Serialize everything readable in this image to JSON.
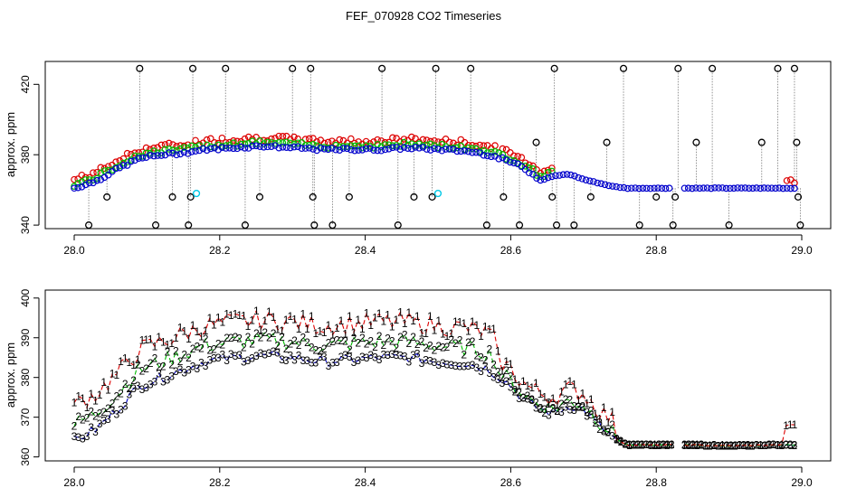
{
  "title": "FEF_070928  CO2 Timeseries",
  "chart_data": [
    {
      "type": "scatter",
      "panel": "top",
      "ylabel": "approx. ppm",
      "xlabel": "",
      "xlim": [
        28.0,
        29.0
      ],
      "ylim": [
        338,
        433
      ],
      "x_ticks": [
        "28.0",
        "28.2",
        "28.4",
        "28.6",
        "28.8",
        "29.0"
      ],
      "y_ticks": [
        "340",
        "380",
        "420"
      ],
      "grid": false,
      "series": [
        {
          "name": "black",
          "color": "#000000",
          "marker": "open-circle",
          "points": [
            [
              28.02,
              340
            ],
            [
              28.045,
              356
            ],
            [
              28.09,
              429
            ],
            [
              28.112,
              340
            ],
            [
              28.135,
              356
            ],
            [
              28.157,
              340
            ],
            [
              28.16,
              356
            ],
            [
              28.163,
              429
            ],
            [
              28.208,
              429
            ],
            [
              28.235,
              340
            ],
            [
              28.255,
              356
            ],
            [
              28.3,
              429
            ],
            [
              28.325,
              429
            ],
            [
              28.328,
              356
            ],
            [
              28.33,
              340
            ],
            [
              28.355,
              340
            ],
            [
              28.378,
              356
            ],
            [
              28.423,
              429
            ],
            [
              28.445,
              340
            ],
            [
              28.467,
              356
            ],
            [
              28.492,
              356
            ],
            [
              28.497,
              429
            ],
            [
              28.545,
              429
            ],
            [
              28.567,
              340
            ],
            [
              28.59,
              356
            ],
            [
              28.612,
              340
            ],
            [
              28.635,
              387
            ],
            [
              28.657,
              356
            ],
            [
              28.66,
              429
            ],
            [
              28.663,
              340
            ],
            [
              28.687,
              340
            ],
            [
              28.71,
              356
            ],
            [
              28.732,
              387
            ],
            [
              28.755,
              429
            ],
            [
              28.777,
              340
            ],
            [
              28.8,
              356
            ],
            [
              28.823,
              340
            ],
            [
              28.826,
              356
            ],
            [
              28.83,
              429
            ],
            [
              28.855,
              387
            ],
            [
              28.877,
              429
            ],
            [
              28.9,
              340
            ],
            [
              28.945,
              387
            ],
            [
              28.967,
              429
            ],
            [
              28.99,
              429
            ],
            [
              28.993,
              387
            ],
            [
              28.995,
              356
            ],
            [
              28.998,
              340
            ]
          ]
        },
        {
          "name": "cyan",
          "color": "#00c8e6",
          "marker": "open-circle",
          "points": [
            [
              28.168,
              358
            ],
            [
              28.5,
              358
            ]
          ]
        }
      ]
    },
    {
      "type": "line",
      "panel": "bottom",
      "ylabel": "approx. ppm",
      "xlabel": "",
      "xlim": [
        28.0,
        29.0
      ],
      "ylim": [
        359,
        402
      ],
      "x_ticks": [
        "28.0",
        "28.2",
        "28.4",
        "28.6",
        "28.8",
        "29.0"
      ],
      "y_ticks": [
        "360",
        "370",
        "380",
        "390",
        "400"
      ],
      "grid": false,
      "series": [
        {
          "name": "1",
          "color": "#dd0000",
          "marker": "1",
          "line": "dashed"
        },
        {
          "name": "2",
          "color": "#00bb00",
          "marker": "2",
          "line": "dashed"
        },
        {
          "name": "3",
          "color": "#0000cc",
          "marker": "3",
          "line": "dashed"
        }
      ],
      "profile": {
        "x": [
          28.0,
          28.03,
          28.06,
          28.09,
          28.12,
          28.15,
          28.18,
          28.22,
          28.26,
          28.3,
          28.34,
          28.38,
          28.42,
          28.46,
          28.5,
          28.54,
          28.57,
          28.6,
          28.62,
          28.64,
          28.66,
          28.68,
          28.7,
          28.72,
          28.74,
          28.76,
          28.8,
          28.83,
          28.84,
          28.9,
          28.96,
          28.99
        ],
        "base": [
          364,
          367,
          372,
          378,
          380,
          382,
          384,
          385,
          385.5,
          385,
          384,
          384.5,
          385,
          385,
          384,
          383.5,
          382,
          378,
          374,
          372,
          371,
          373,
          372,
          368,
          365,
          363,
          363,
          363,
          363,
          362.8,
          363,
          363
        ]
      },
      "series_offsets": {
        "1": 9,
        "2": 4,
        "3": 0
      },
      "gap": [
        28.822,
        28.834
      ]
    }
  ],
  "top_profile": {
    "x": [
      28.0,
      28.03,
      28.06,
      28.09,
      28.12,
      28.15,
      28.18,
      28.22,
      28.26,
      28.3,
      28.34,
      28.38,
      28.42,
      28.46,
      28.5,
      28.54,
      28.57,
      28.6,
      28.62,
      28.64,
      28.66,
      28.68,
      28.7,
      28.72,
      28.74,
      28.76,
      28.8,
      28.83,
      28.84,
      28.9,
      28.96,
      28.99
    ],
    "base": [
      361,
      365,
      372,
      378,
      380,
      381,
      383,
      384,
      385,
      384,
      383,
      383,
      383,
      384,
      383,
      382,
      380,
      376,
      372,
      366,
      368,
      369,
      366,
      364,
      362,
      361,
      361,
      361,
      361,
      361,
      361,
      361
    ],
    "red_offset": 4,
    "green_offset": 2,
    "gap": [
      28.822,
      28.834
    ]
  }
}
